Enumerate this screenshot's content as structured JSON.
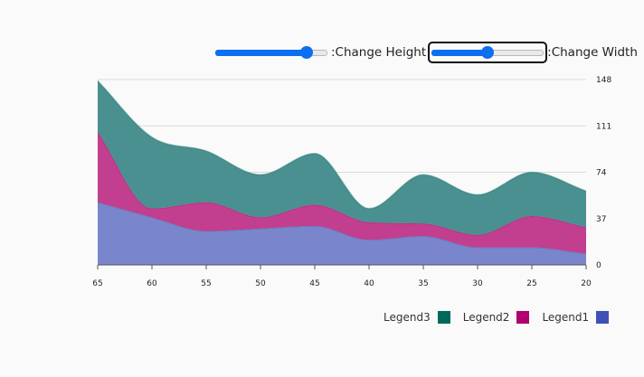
{
  "controls": {
    "height_label": ":Change Height",
    "width_label": ":Change Width",
    "height_value": 0.85,
    "width_value": 0.5
  },
  "colors": {
    "Legend1": "#3f51b5",
    "Legend2": "#b0006f",
    "Legend3": "#00695c",
    "Legend1_fill": "#7986cb",
    "Legend2_fill": "#c23e8e",
    "Legend3_fill": "#4b9090",
    "grid": "#d9d9d9"
  },
  "legend": [
    {
      "name": "Legend3",
      "color": "#00695c"
    },
    {
      "name": "Legend2",
      "color": "#b0006f"
    },
    {
      "name": "Legend1",
      "color": "#3f51b5"
    }
  ],
  "chart_data": {
    "type": "area",
    "stacked": true,
    "x": [
      65,
      60,
      55,
      50,
      45,
      40,
      35,
      30,
      25,
      20
    ],
    "xlim": [
      65,
      20
    ],
    "ylim": [
      0,
      148
    ],
    "yticks": [
      0,
      37,
      74,
      111,
      148
    ],
    "xticks": [
      65,
      60,
      55,
      50,
      45,
      40,
      35,
      30,
      25,
      20
    ],
    "y_axis_position": "right",
    "grid": true,
    "legend_position": "bottom-right",
    "series": [
      {
        "name": "Legend1",
        "values": [
          50,
          38,
          27,
          29,
          31,
          20,
          23,
          14,
          14,
          9
        ]
      },
      {
        "name": "Legend2",
        "values": [
          56,
          7,
          23,
          9,
          17,
          14,
          10,
          10,
          25,
          21
        ]
      },
      {
        "name": "Legend3",
        "values": [
          41,
          57,
          41,
          34,
          41,
          11,
          39,
          32,
          35,
          29
        ]
      }
    ]
  }
}
